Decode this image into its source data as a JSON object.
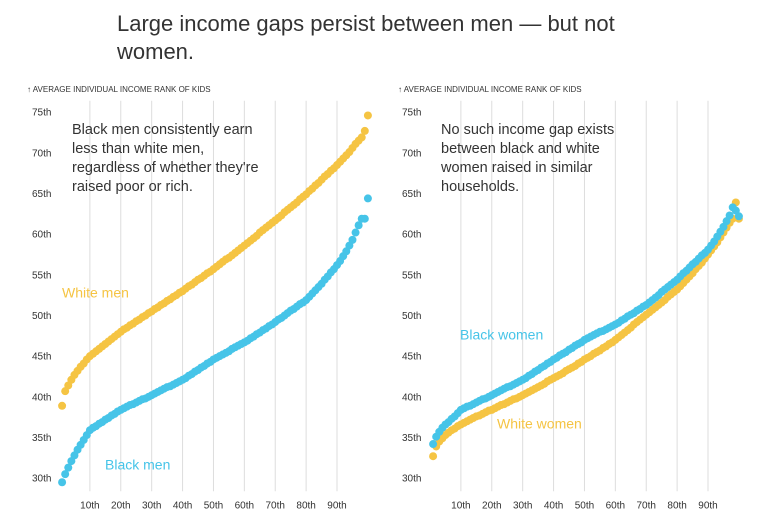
{
  "title": "Large income gaps persist between men — but not women.",
  "chart_data": [
    {
      "type": "scatter",
      "ylabel": "↑ AVERAGE INDIVIDUAL INCOME RANK OF KIDS",
      "annotation": "Black men consistently earn less than white men, regardless of whether they're raised poor or rich.",
      "x": [
        1,
        2,
        3,
        4,
        5,
        6,
        7,
        8,
        9,
        10,
        11,
        12,
        13,
        14,
        15,
        16,
        17,
        18,
        19,
        20,
        21,
        22,
        23,
        24,
        25,
        26,
        27,
        28,
        29,
        30,
        31,
        32,
        33,
        34,
        35,
        36,
        37,
        38,
        39,
        40,
        41,
        42,
        43,
        44,
        45,
        46,
        47,
        48,
        49,
        50,
        51,
        52,
        53,
        54,
        55,
        56,
        57,
        58,
        59,
        60,
        61,
        62,
        63,
        64,
        65,
        66,
        67,
        68,
        69,
        70,
        71,
        72,
        73,
        74,
        75,
        76,
        77,
        78,
        79,
        80,
        81,
        82,
        83,
        84,
        85,
        86,
        87,
        88,
        89,
        90,
        91,
        92,
        93,
        94,
        95,
        96,
        97,
        98,
        99,
        100
      ],
      "xlim": [
        0,
        101
      ],
      "ylim": [
        28.5,
        76.5
      ],
      "grid": true,
      "xticks": [
        {
          "value": 10,
          "label": "10th"
        },
        {
          "value": 20,
          "label": "20th"
        },
        {
          "value": 30,
          "label": "30th"
        },
        {
          "value": 40,
          "label": "40th"
        },
        {
          "value": 50,
          "label": "50th"
        },
        {
          "value": 60,
          "label": "60th"
        },
        {
          "value": 70,
          "label": "70th"
        },
        {
          "value": 80,
          "label": "80th"
        },
        {
          "value": 90,
          "label": "90th"
        }
      ],
      "yticks": [
        {
          "value": 30,
          "label": "30th"
        },
        {
          "value": 35,
          "label": "35th"
        },
        {
          "value": 40,
          "label": "40th"
        },
        {
          "value": 45,
          "label": "45th"
        },
        {
          "value": 50,
          "label": "50th"
        },
        {
          "value": 55,
          "label": "55th"
        },
        {
          "value": 60,
          "label": "60th"
        },
        {
          "value": 65,
          "label": "65th"
        },
        {
          "value": 70,
          "label": "70th"
        },
        {
          "value": 75,
          "label": "75th"
        }
      ],
      "series": [
        {
          "name": "White men",
          "color": "#f5c443",
          "values": [
            39.0,
            40.8,
            41.5,
            42.2,
            42.8,
            43.3,
            43.8,
            44.2,
            44.7,
            45.1,
            45.4,
            45.7,
            46.0,
            46.3,
            46.6,
            46.9,
            47.2,
            47.5,
            47.8,
            48.1,
            48.4,
            48.6,
            48.9,
            49.1,
            49.4,
            49.6,
            49.9,
            50.1,
            50.4,
            50.6,
            50.9,
            51.1,
            51.4,
            51.6,
            51.9,
            52.1,
            52.4,
            52.6,
            52.9,
            53.1,
            53.4,
            53.7,
            53.9,
            54.2,
            54.5,
            54.7,
            55.0,
            55.3,
            55.5,
            55.8,
            56.1,
            56.4,
            56.7,
            57.0,
            57.2,
            57.5,
            57.8,
            58.1,
            58.4,
            58.7,
            59.0,
            59.3,
            59.6,
            59.9,
            60.3,
            60.6,
            60.9,
            61.2,
            61.5,
            61.8,
            62.1,
            62.4,
            62.8,
            63.1,
            63.4,
            63.7,
            64.0,
            64.4,
            64.7,
            65.0,
            65.4,
            65.7,
            66.1,
            66.4,
            66.8,
            67.2,
            67.5,
            67.9,
            68.2,
            68.6,
            69.0,
            69.4,
            69.8,
            70.2,
            70.7,
            71.2,
            71.6,
            72.0,
            72.8,
            74.7
          ]
        },
        {
          "name": "Black men",
          "color": "#46c4e8",
          "values": [
            29.6,
            30.6,
            31.4,
            32.2,
            32.9,
            33.6,
            34.2,
            34.8,
            35.4,
            36.0,
            36.3,
            36.5,
            36.8,
            37.0,
            37.3,
            37.5,
            37.8,
            38.0,
            38.3,
            38.5,
            38.7,
            38.9,
            39.1,
            39.2,
            39.4,
            39.6,
            39.8,
            39.9,
            40.1,
            40.3,
            40.5,
            40.7,
            40.9,
            41.1,
            41.3,
            41.4,
            41.6,
            41.8,
            42.0,
            42.2,
            42.4,
            42.7,
            42.9,
            43.2,
            43.4,
            43.7,
            43.9,
            44.2,
            44.4,
            44.7,
            44.9,
            45.1,
            45.3,
            45.5,
            45.7,
            46.0,
            46.2,
            46.4,
            46.6,
            46.8,
            47.0,
            47.3,
            47.5,
            47.8,
            48.0,
            48.3,
            48.5,
            48.8,
            49.0,
            49.3,
            49.6,
            49.8,
            50.1,
            50.4,
            50.7,
            50.9,
            51.2,
            51.5,
            51.7,
            52.0,
            52.4,
            52.8,
            53.2,
            53.6,
            54.0,
            54.5,
            54.9,
            55.4,
            55.8,
            56.3,
            56.8,
            57.4,
            58.0,
            58.7,
            59.4,
            60.3,
            61.2,
            62.0,
            62.0,
            64.5
          ]
        }
      ]
    },
    {
      "type": "scatter",
      "ylabel": "↑ AVERAGE INDIVIDUAL INCOME RANK OF KIDS",
      "annotation": "No such income gap exists between black and white women raised in similar households.",
      "x": [
        1,
        2,
        3,
        4,
        5,
        6,
        7,
        8,
        9,
        10,
        11,
        12,
        13,
        14,
        15,
        16,
        17,
        18,
        19,
        20,
        21,
        22,
        23,
        24,
        25,
        26,
        27,
        28,
        29,
        30,
        31,
        32,
        33,
        34,
        35,
        36,
        37,
        38,
        39,
        40,
        41,
        42,
        43,
        44,
        45,
        46,
        47,
        48,
        49,
        50,
        51,
        52,
        53,
        54,
        55,
        56,
        57,
        58,
        59,
        60,
        61,
        62,
        63,
        64,
        65,
        66,
        67,
        68,
        69,
        70,
        71,
        72,
        73,
        74,
        75,
        76,
        77,
        78,
        79,
        80,
        81,
        82,
        83,
        84,
        85,
        86,
        87,
        88,
        89,
        90,
        91,
        92,
        93,
        94,
        95,
        96,
        97,
        98,
        99,
        100
      ],
      "xlim": [
        0,
        101
      ],
      "ylim": [
        28.5,
        76.5
      ],
      "grid": true,
      "xticks": [
        {
          "value": 10,
          "label": "10th"
        },
        {
          "value": 20,
          "label": "20th"
        },
        {
          "value": 30,
          "label": "30th"
        },
        {
          "value": 40,
          "label": "40th"
        },
        {
          "value": 50,
          "label": "50th"
        },
        {
          "value": 60,
          "label": "60th"
        },
        {
          "value": 70,
          "label": "70th"
        },
        {
          "value": 80,
          "label": "80th"
        },
        {
          "value": 90,
          "label": "90th"
        }
      ],
      "yticks": [
        {
          "value": 30,
          "label": "30th"
        },
        {
          "value": 35,
          "label": "35th"
        },
        {
          "value": 40,
          "label": "40th"
        },
        {
          "value": 45,
          "label": "45th"
        },
        {
          "value": 50,
          "label": "50th"
        },
        {
          "value": 55,
          "label": "55th"
        },
        {
          "value": 60,
          "label": "60th"
        },
        {
          "value": 65,
          "label": "65th"
        },
        {
          "value": 70,
          "label": "70th"
        },
        {
          "value": 75,
          "label": "75th"
        }
      ],
      "series": [
        {
          "name": "White women",
          "color": "#f5c443",
          "values": [
            32.8,
            34.0,
            34.6,
            35.0,
            35.4,
            35.7,
            36.0,
            36.2,
            36.5,
            36.7,
            36.9,
            37.1,
            37.3,
            37.5,
            37.7,
            37.8,
            38.0,
            38.2,
            38.4,
            38.5,
            38.7,
            38.9,
            39.1,
            39.2,
            39.4,
            39.6,
            39.8,
            39.9,
            40.1,
            40.3,
            40.5,
            40.7,
            40.9,
            41.1,
            41.3,
            41.5,
            41.7,
            42.0,
            42.2,
            42.4,
            42.6,
            42.8,
            43.0,
            43.3,
            43.5,
            43.7,
            43.9,
            44.2,
            44.4,
            44.7,
            44.9,
            45.1,
            45.4,
            45.6,
            45.8,
            46.1,
            46.3,
            46.6,
            46.8,
            47.1,
            47.4,
            47.7,
            48.0,
            48.3,
            48.6,
            49.0,
            49.3,
            49.6,
            49.9,
            50.2,
            50.5,
            50.8,
            51.1,
            51.4,
            51.7,
            52.0,
            52.4,
            52.7,
            53.0,
            53.3,
            53.7,
            54.1,
            54.5,
            54.9,
            55.3,
            55.8,
            56.2,
            56.6,
            57.1,
            57.6,
            58.1,
            58.6,
            59.1,
            59.7,
            60.3,
            60.9,
            61.5,
            62.0,
            64.0,
            62.0
          ]
        },
        {
          "name": "Black women",
          "color": "#46c4e8",
          "values": [
            34.3,
            35.2,
            35.8,
            36.3,
            36.7,
            37.0,
            37.4,
            37.7,
            38.1,
            38.5,
            38.7,
            38.9,
            39.0,
            39.2,
            39.4,
            39.6,
            39.8,
            39.9,
            40.1,
            40.3,
            40.5,
            40.7,
            40.9,
            41.1,
            41.3,
            41.4,
            41.6,
            41.8,
            42.0,
            42.2,
            42.4,
            42.7,
            42.9,
            43.2,
            43.4,
            43.7,
            43.9,
            44.2,
            44.4,
            44.7,
            44.9,
            45.2,
            45.4,
            45.6,
            45.9,
            46.1,
            46.4,
            46.6,
            46.8,
            47.1,
            47.3,
            47.5,
            47.7,
            47.9,
            48.1,
            48.2,
            48.4,
            48.6,
            48.8,
            49.0,
            49.2,
            49.5,
            49.7,
            50.0,
            50.2,
            50.4,
            50.7,
            50.9,
            51.2,
            51.4,
            51.7,
            52.0,
            52.3,
            52.6,
            53.0,
            53.3,
            53.6,
            53.9,
            54.2,
            54.5,
            54.9,
            55.3,
            55.6,
            56.0,
            56.4,
            56.7,
            57.1,
            57.5,
            57.8,
            58.2,
            58.7,
            59.2,
            59.8,
            60.4,
            61.0,
            61.7,
            62.4,
            63.4,
            63.0,
            62.3
          ]
        }
      ]
    }
  ]
}
